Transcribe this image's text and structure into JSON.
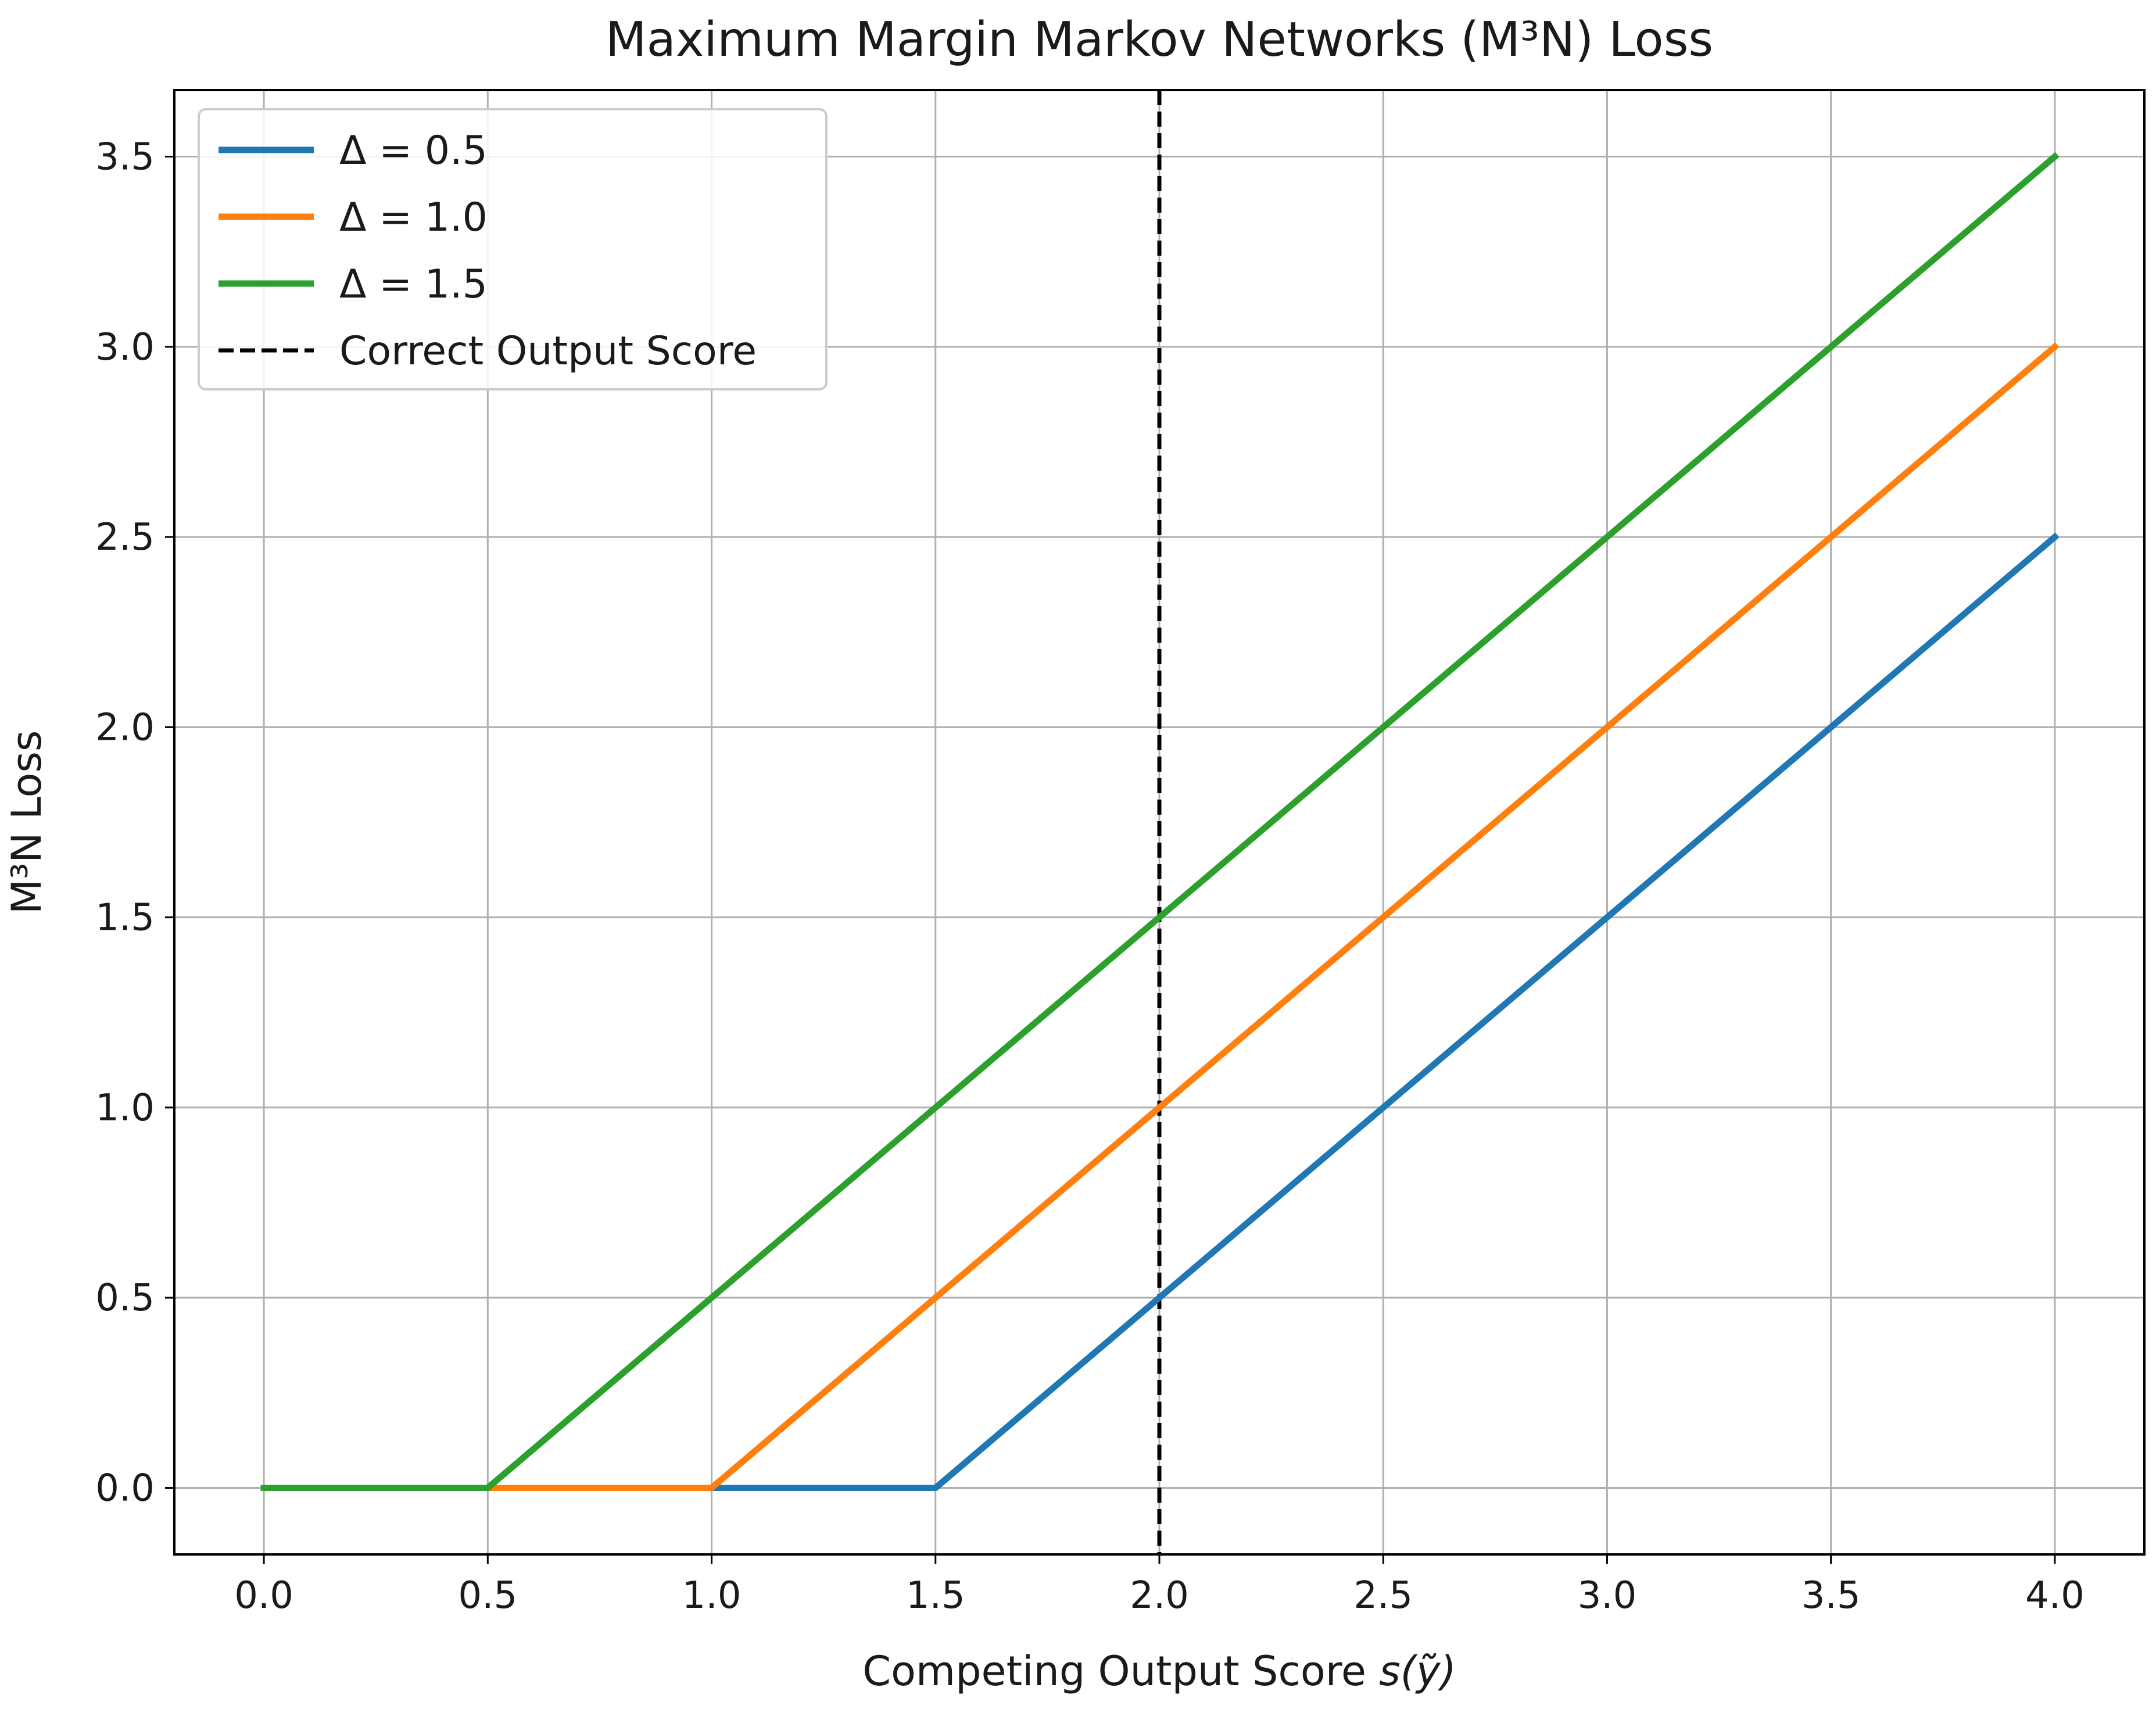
{
  "chart_data": {
    "type": "line",
    "title": "Maximum Margin Markov Networks (M³N) Loss",
    "xlabel_prefix": "Competing Output Score ",
    "xlabel_math": "s(ỹ)",
    "ylabel": "M³N Loss",
    "xlim": [
      -0.2,
      4.2
    ],
    "ylim": [
      -0.175,
      3.675
    ],
    "x_ticks": [
      "0.0",
      "0.5",
      "1.0",
      "1.5",
      "2.0",
      "2.5",
      "3.0",
      "3.5",
      "4.0"
    ],
    "y_ticks": [
      "0.0",
      "0.5",
      "1.0",
      "1.5",
      "2.0",
      "2.5",
      "3.0",
      "3.5"
    ],
    "grid": true,
    "legend_position": "top-left",
    "series": [
      {
        "name": "Δ = 0.5",
        "color": "#1f77b4",
        "x": [
          0.0,
          0.5,
          1.0,
          1.5,
          2.0,
          2.5,
          3.0,
          3.5,
          4.0
        ],
        "y": [
          0.0,
          0.0,
          0.0,
          0.0,
          0.5,
          1.0,
          1.5,
          2.0,
          2.5
        ]
      },
      {
        "name": "Δ = 1.0",
        "color": "#ff7f0e",
        "x": [
          0.0,
          0.5,
          1.0,
          1.5,
          2.0,
          2.5,
          3.0,
          3.5,
          4.0
        ],
        "y": [
          0.0,
          0.0,
          0.0,
          0.5,
          1.0,
          1.5,
          2.0,
          2.5,
          3.0
        ]
      },
      {
        "name": "Δ = 1.5",
        "color": "#2ca02c",
        "x": [
          0.0,
          0.5,
          1.0,
          1.5,
          2.0,
          2.5,
          3.0,
          3.5,
          4.0
        ],
        "y": [
          0.0,
          0.0,
          0.5,
          1.0,
          1.5,
          2.0,
          2.5,
          3.0,
          3.5
        ]
      }
    ],
    "vline": {
      "name": "Correct Output Score",
      "x": 2.0,
      "color": "#000000",
      "style": "dashed"
    }
  }
}
